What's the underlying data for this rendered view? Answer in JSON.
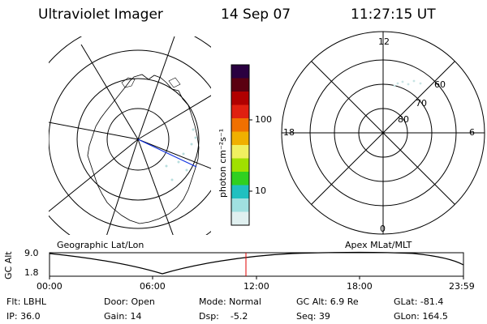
{
  "header": {
    "title": "Ultraviolet Imager",
    "date": "14 Sep 07",
    "time": "11:27:15 UT"
  },
  "left_panel": {
    "label": "Geographic Lat/Lon"
  },
  "right_panel": {
    "label": "Apex MLat/MLT",
    "mlt_labels": {
      "top": "12",
      "left": "18",
      "right": "6",
      "bottom": "0"
    },
    "lat_labels": [
      "60",
      "70",
      "80"
    ]
  },
  "colorbar": {
    "unit_label": "photon cm⁻²s⁻¹",
    "ticks": [
      "100",
      "10"
    ],
    "colors": [
      "#2a0040",
      "#5a0010",
      "#b00000",
      "#e02010",
      "#f07000",
      "#f0b000",
      "#f0f060",
      "#a0e000",
      "#30d020",
      "#20c0c0",
      "#a0e0e0",
      "#e0f0f0"
    ]
  },
  "altitude_plot": {
    "ylabel": "GC Alt",
    "yticks": [
      "9.0",
      "1.8"
    ],
    "xticks": [
      "00:00",
      "06:00",
      "12:00",
      "18:00",
      "23:59"
    ],
    "marker_color": "#e00000"
  },
  "status": {
    "filter": "Flt: LBHL",
    "door": "Door: Open",
    "mode": "Mode: Normal",
    "gc_alt": "GC Alt: 6.9 Re",
    "glat": "GLat: -81.4",
    "ip": "IP: 36.0",
    "gain": "Gain: 14",
    "dsp": "Dsp:    -5.2",
    "seq": "Seq: 39",
    "glon": "GLon: 164.5"
  }
}
